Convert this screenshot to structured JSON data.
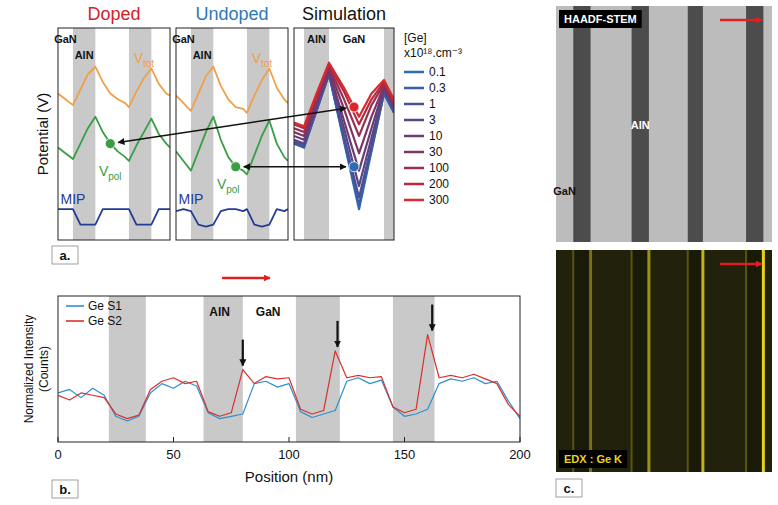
{
  "chart_data": [
    {
      "type": "line",
      "title": "Doped",
      "y_label": "Potential (V)",
      "panel": "a.",
      "xlim": [
        0,
        60
      ],
      "ylim": [
        0,
        11
      ],
      "tick_labels": false,
      "bands": [
        [
          8,
          20
        ],
        [
          38,
          50
        ]
      ],
      "region_labels": [
        {
          "text": "GaN",
          "x": 4
        },
        {
          "text": "AlN",
          "x": 14
        }
      ],
      "x": [
        0,
        4,
        8,
        12,
        16,
        20,
        24,
        28,
        32,
        36,
        38,
        42,
        46,
        50,
        54,
        58,
        60
      ],
      "series": [
        {
          "name": "V",
          "subscript": "tot",
          "color": "#f0a04b",
          "values": [
            7.6,
            7.3,
            7.0,
            7.8,
            8.6,
            9.0,
            8.2,
            7.6,
            7.3,
            7.1,
            6.9,
            7.7,
            8.4,
            8.9,
            8.1,
            7.6,
            7.5
          ]
        },
        {
          "name": "V",
          "subscript": "pol",
          "color": "#3a9e44",
          "values": [
            4.8,
            4.5,
            4.2,
            5.0,
            5.8,
            6.4,
            5.6,
            5.0,
            4.6,
            4.3,
            4.1,
            4.9,
            5.6,
            6.3,
            5.5,
            5.0,
            4.8
          ]
        },
        {
          "name": "MIP",
          "color": "#233d97",
          "values": [
            1.6,
            1.6,
            1.6,
            0.8,
            0.8,
            0.8,
            1.6,
            1.6,
            1.6,
            1.6,
            1.6,
            0.8,
            0.8,
            0.8,
            1.6,
            1.6,
            1.6
          ]
        }
      ],
      "points": [
        {
          "x": 28,
          "y": 5.0,
          "color": "#3a9e44"
        }
      ]
    },
    {
      "type": "line",
      "title": "Undoped",
      "xlim": [
        0,
        60
      ],
      "ylim": [
        0,
        11
      ],
      "tick_labels": false,
      "bands": [
        [
          8,
          20
        ],
        [
          38,
          50
        ]
      ],
      "region_labels": [
        {
          "text": "GaN",
          "x": 4
        },
        {
          "text": "AlN",
          "x": 14
        }
      ],
      "x": [
        0,
        4,
        8,
        12,
        16,
        20,
        24,
        28,
        32,
        36,
        38,
        42,
        46,
        50,
        54,
        58,
        60
      ],
      "series": [
        {
          "name": "V",
          "subscript": "tot",
          "color": "#f0a04b",
          "values": [
            7.5,
            7.1,
            6.7,
            7.6,
            8.5,
            9.0,
            8.0,
            7.3,
            6.9,
            6.8,
            6.6,
            7.5,
            8.3,
            8.9,
            7.9,
            7.3,
            7.1
          ]
        },
        {
          "name": "V",
          "subscript": "pol",
          "color": "#3a9e44",
          "values": [
            4.6,
            4.1,
            3.6,
            4.6,
            5.6,
            6.4,
            5.2,
            4.3,
            3.8,
            3.6,
            3.4,
            4.4,
            5.4,
            6.2,
            5.0,
            4.3,
            4.1
          ]
        },
        {
          "name": "MIP",
          "color": "#233d97",
          "values": [
            1.5,
            1.6,
            1.5,
            0.8,
            0.7,
            0.8,
            1.5,
            1.6,
            1.6,
            1.5,
            1.6,
            0.8,
            0.7,
            0.8,
            1.6,
            1.5,
            1.6
          ]
        }
      ],
      "points": [
        {
          "x": 32,
          "y": 3.8,
          "color": "#3a9e44"
        }
      ]
    },
    {
      "type": "line",
      "title": "Simulation",
      "legend_title": "[Ge] x10¹⁸.cm⁻³",
      "legend": "right",
      "xlim": [
        0,
        40
      ],
      "ylim": [
        0,
        11
      ],
      "tick_labels": false,
      "bands": [
        [
          4,
          14
        ],
        [
          36,
          40
        ]
      ],
      "region_labels": [
        {
          "text": "AlN",
          "x": 9
        },
        {
          "text": "GaN",
          "x": 24
        }
      ],
      "x": [
        0,
        4,
        9,
        14,
        20,
        26,
        31,
        36,
        40
      ],
      "series": [
        {
          "name": "0.1",
          "color": "#2b6cb5",
          "values": [
            5.0,
            4.8,
            6.7,
            8.6,
            5.1,
            1.6,
            4.6,
            7.6,
            6.6
          ]
        },
        {
          "name": "0.3",
          "color": "#3a5fa8",
          "values": [
            5.0,
            4.8,
            6.7,
            8.6,
            5.2,
            1.8,
            4.7,
            7.6,
            6.6
          ]
        },
        {
          "name": "1",
          "color": "#4a4f96",
          "values": [
            5.1,
            4.9,
            6.8,
            8.6,
            5.4,
            2.2,
            4.9,
            7.7,
            6.7
          ]
        },
        {
          "name": "3",
          "color": "#5a4585",
          "values": [
            5.2,
            5.0,
            6.9,
            8.7,
            5.8,
            2.8,
            5.3,
            7.8,
            6.8
          ]
        },
        {
          "name": "10",
          "color": "#6a3c74",
          "values": [
            5.4,
            5.2,
            7.0,
            8.8,
            6.2,
            3.6,
            5.8,
            7.9,
            6.9
          ]
        },
        {
          "name": "30",
          "color": "#7e3563",
          "values": [
            5.6,
            5.4,
            7.2,
            8.9,
            6.8,
            4.5,
            6.4,
            8.0,
            7.0
          ]
        },
        {
          "name": "100",
          "color": "#9a2e50",
          "values": [
            5.8,
            5.6,
            7.3,
            9.0,
            7.3,
            5.4,
            7.0,
            8.1,
            7.1
          ]
        },
        {
          "name": "200",
          "color": "#b8293f",
          "values": [
            6.0,
            5.8,
            7.5,
            9.1,
            7.7,
            6.0,
            7.3,
            8.2,
            7.2
          ]
        },
        {
          "name": "300",
          "color": "#d62a2f",
          "values": [
            6.1,
            5.9,
            7.6,
            9.2,
            7.9,
            6.4,
            7.6,
            8.3,
            7.3
          ]
        }
      ],
      "points": [
        {
          "x": 24,
          "y": 6.9,
          "color": "#d62a2f"
        },
        {
          "x": 24,
          "y": 3.8,
          "color": "#2b6cb5"
        }
      ]
    },
    {
      "type": "line",
      "panel": "b.",
      "x_label": "Position (nm)",
      "y_label": "Normalized Intensity (Counts)",
      "xlim": [
        0,
        200
      ],
      "ylim": [
        0,
        1.25
      ],
      "xticks": [
        0,
        50,
        100,
        150,
        200
      ],
      "tick_labels": "x",
      "legend": "upper left",
      "bands": [
        [
          22,
          38
        ],
        [
          63,
          80
        ],
        [
          103,
          122
        ],
        [
          145,
          163
        ]
      ],
      "region_labels": [
        {
          "text": "AlN",
          "x": 70
        },
        {
          "text": "GaN",
          "x": 91
        }
      ],
      "peak_arrows": [
        80,
        121,
        162
      ],
      "x": [
        0,
        5,
        10,
        15,
        20,
        25,
        30,
        35,
        40,
        45,
        50,
        55,
        60,
        65,
        70,
        75,
        80,
        85,
        90,
        95,
        100,
        105,
        110,
        115,
        120,
        125,
        130,
        135,
        140,
        145,
        150,
        155,
        160,
        165,
        170,
        175,
        180,
        185,
        190,
        195,
        200
      ],
      "series": [
        {
          "name": "Ge S1",
          "color": "#2f8fd0",
          "values": [
            0.42,
            0.45,
            0.38,
            0.46,
            0.4,
            0.22,
            0.18,
            0.22,
            0.42,
            0.5,
            0.46,
            0.52,
            0.48,
            0.25,
            0.2,
            0.22,
            0.24,
            0.5,
            0.52,
            0.47,
            0.5,
            0.26,
            0.21,
            0.24,
            0.27,
            0.52,
            0.55,
            0.5,
            0.53,
            0.3,
            0.22,
            0.24,
            0.28,
            0.5,
            0.54,
            0.52,
            0.55,
            0.5,
            0.52,
            0.35,
            0.2
          ]
        },
        {
          "name": "Ge S2",
          "color": "#d8312c",
          "values": [
            0.4,
            0.36,
            0.42,
            0.4,
            0.38,
            0.24,
            0.2,
            0.23,
            0.45,
            0.52,
            0.55,
            0.5,
            0.52,
            0.26,
            0.22,
            0.25,
            0.62,
            0.5,
            0.56,
            0.54,
            0.55,
            0.28,
            0.24,
            0.27,
            0.78,
            0.55,
            0.57,
            0.55,
            0.56,
            0.3,
            0.25,
            0.28,
            0.92,
            0.55,
            0.57,
            0.55,
            0.58,
            0.54,
            0.5,
            0.32,
            0.22
          ]
        }
      ]
    }
  ],
  "images": {
    "panel": "c.",
    "xlim": [
      0,
      200
    ],
    "bands": [
      [
        16,
        32
      ],
      [
        70,
        86
      ],
      [
        122,
        136
      ],
      [
        176,
        192
      ]
    ],
    "items": [
      {
        "title": "HAADF-STEM",
        "region_labels": [
          {
            "text": "AlN",
            "x": 78
          },
          {
            "text": "GaN",
            "x": 8
          }
        ]
      },
      {
        "title": "EDX : Ge K",
        "color": "#e8d51e"
      }
    ]
  }
}
